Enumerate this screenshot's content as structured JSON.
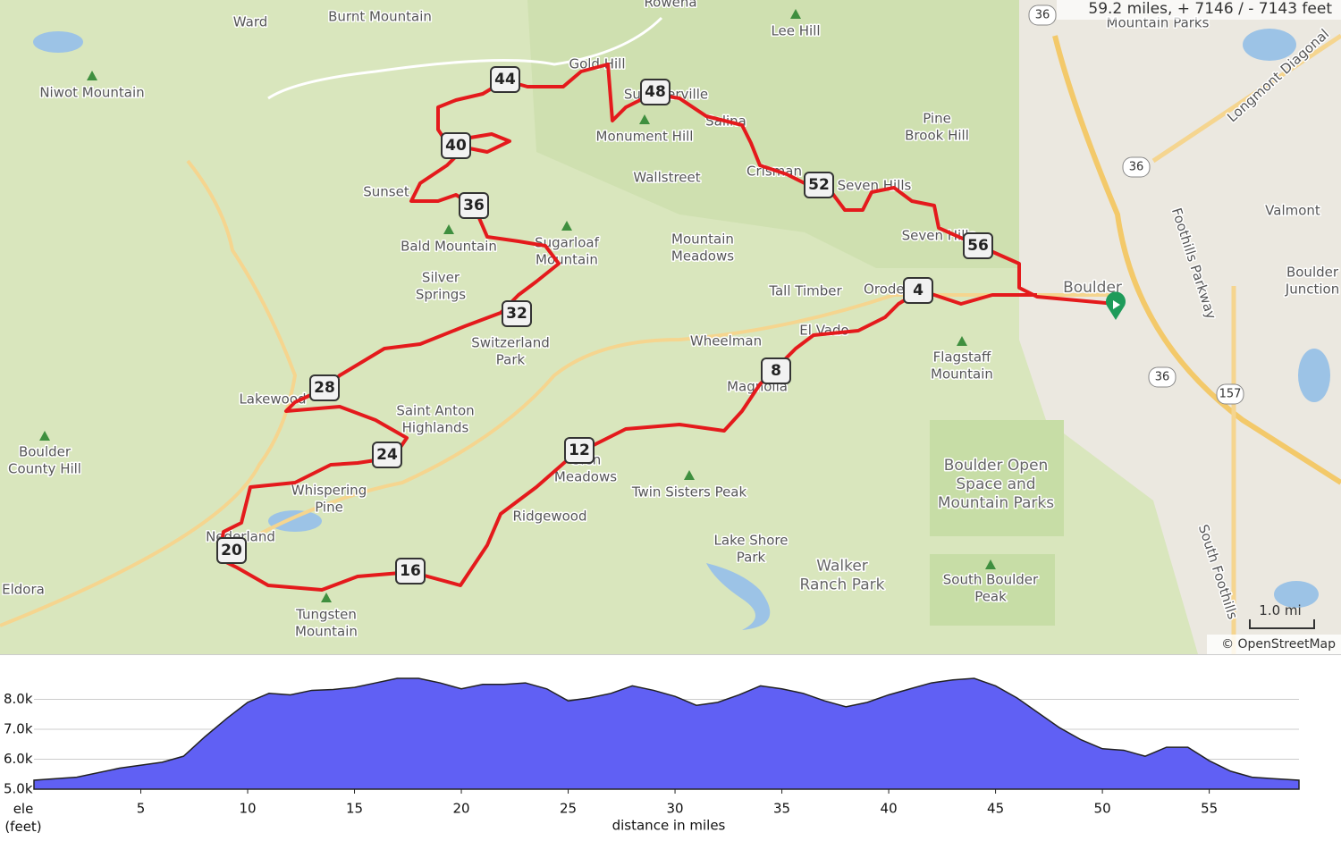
{
  "map": {
    "summary": "59.2 miles, + 7146 / - 7143 feet",
    "scale": "1.0 mi",
    "attribution": "© OpenStreetMap",
    "places": [
      "Ward",
      "Burnt Mountain",
      "Rowena",
      "Lee Hill",
      "Niwot Mountain",
      "Gold Hill",
      "Summerville",
      "Salina",
      "Monument Hill",
      "Wallstreet",
      "Crisman",
      "Seven Hills",
      "Pine\nBrook Hill",
      "Sunset",
      "Bald Mountain",
      "Sugarloaf\nMountain",
      "Mountain\nMeadows",
      "Silver\nSprings",
      "Tall Timber",
      "Orodell",
      "Boulder",
      "Seven Hills",
      "Switzerland\nPark",
      "Wheelman",
      "El Vado",
      "Magnolia",
      "Flagstaff\nMountain",
      "Lakewood",
      "Saint Anton\nHighlands",
      "Whispering\nPine",
      "Glen\nMeadows",
      "Twin Sisters Peak",
      "Ridgewood",
      "Nederland",
      "Boulder\nCounty Hill",
      "Eldora",
      "Lake Shore\nPark",
      "Walker\nRanch Park",
      "Boulder Open\nSpace and\nMountain Parks",
      "South Boulder\nPeak",
      "Tungsten\nMountain",
      "Valmont",
      "Boulder\nJunction",
      "Mountain Parks"
    ],
    "roads": [
      "Foothills Parkway",
      "Longmont Diagonal",
      "South Foothills"
    ],
    "shields": [
      "36",
      "36",
      "36",
      "157"
    ],
    "mile_markers": [
      4,
      8,
      12,
      16,
      20,
      24,
      28,
      32,
      36,
      40,
      44,
      48,
      52,
      56
    ]
  },
  "chart_data": {
    "type": "area",
    "x_label": "distance in miles",
    "y_label": "ele\n(feet)",
    "x": [
      0,
      2,
      4,
      6,
      7,
      8,
      9,
      10,
      11,
      12,
      13,
      14,
      15,
      16,
      17,
      18,
      19,
      20,
      21,
      22,
      23,
      24,
      25,
      26,
      27,
      28,
      29,
      30,
      31,
      32,
      33,
      34,
      35,
      36,
      37,
      38,
      39,
      40,
      41,
      42,
      43,
      44,
      45,
      46,
      47,
      48,
      49,
      50,
      51,
      52,
      53,
      54,
      55,
      56,
      57,
      58,
      59.2
    ],
    "values": [
      5300,
      5400,
      5700,
      5900,
      6100,
      6750,
      7350,
      7900,
      8200,
      8150,
      8300,
      8330,
      8400,
      8550,
      8700,
      8700,
      8550,
      8350,
      8500,
      8500,
      8550,
      8350,
      7950,
      8050,
      8200,
      8450,
      8300,
      8100,
      7800,
      7900,
      8150,
      8450,
      8350,
      8200,
      7950,
      7750,
      7900,
      8150,
      8350,
      8550,
      8650,
      8700,
      8450,
      8050,
      7550,
      7050,
      6650,
      6350,
      6300,
      6100,
      6400,
      6400,
      5950,
      5600,
      5400,
      5350,
      5300
    ],
    "color": "#6060f4",
    "xlim": [
      0,
      59.2
    ],
    "ylim": [
      5000,
      9000
    ],
    "xticks": [
      5,
      10,
      15,
      20,
      25,
      30,
      35,
      40,
      45,
      50,
      55
    ],
    "yticks": [
      {
        "value": 5000,
        "label": "5.0k"
      },
      {
        "value": 6000,
        "label": "6.0k"
      },
      {
        "value": 7000,
        "label": "7.0k"
      },
      {
        "value": 8000,
        "label": "8.0k"
      }
    ],
    "grid": true
  }
}
